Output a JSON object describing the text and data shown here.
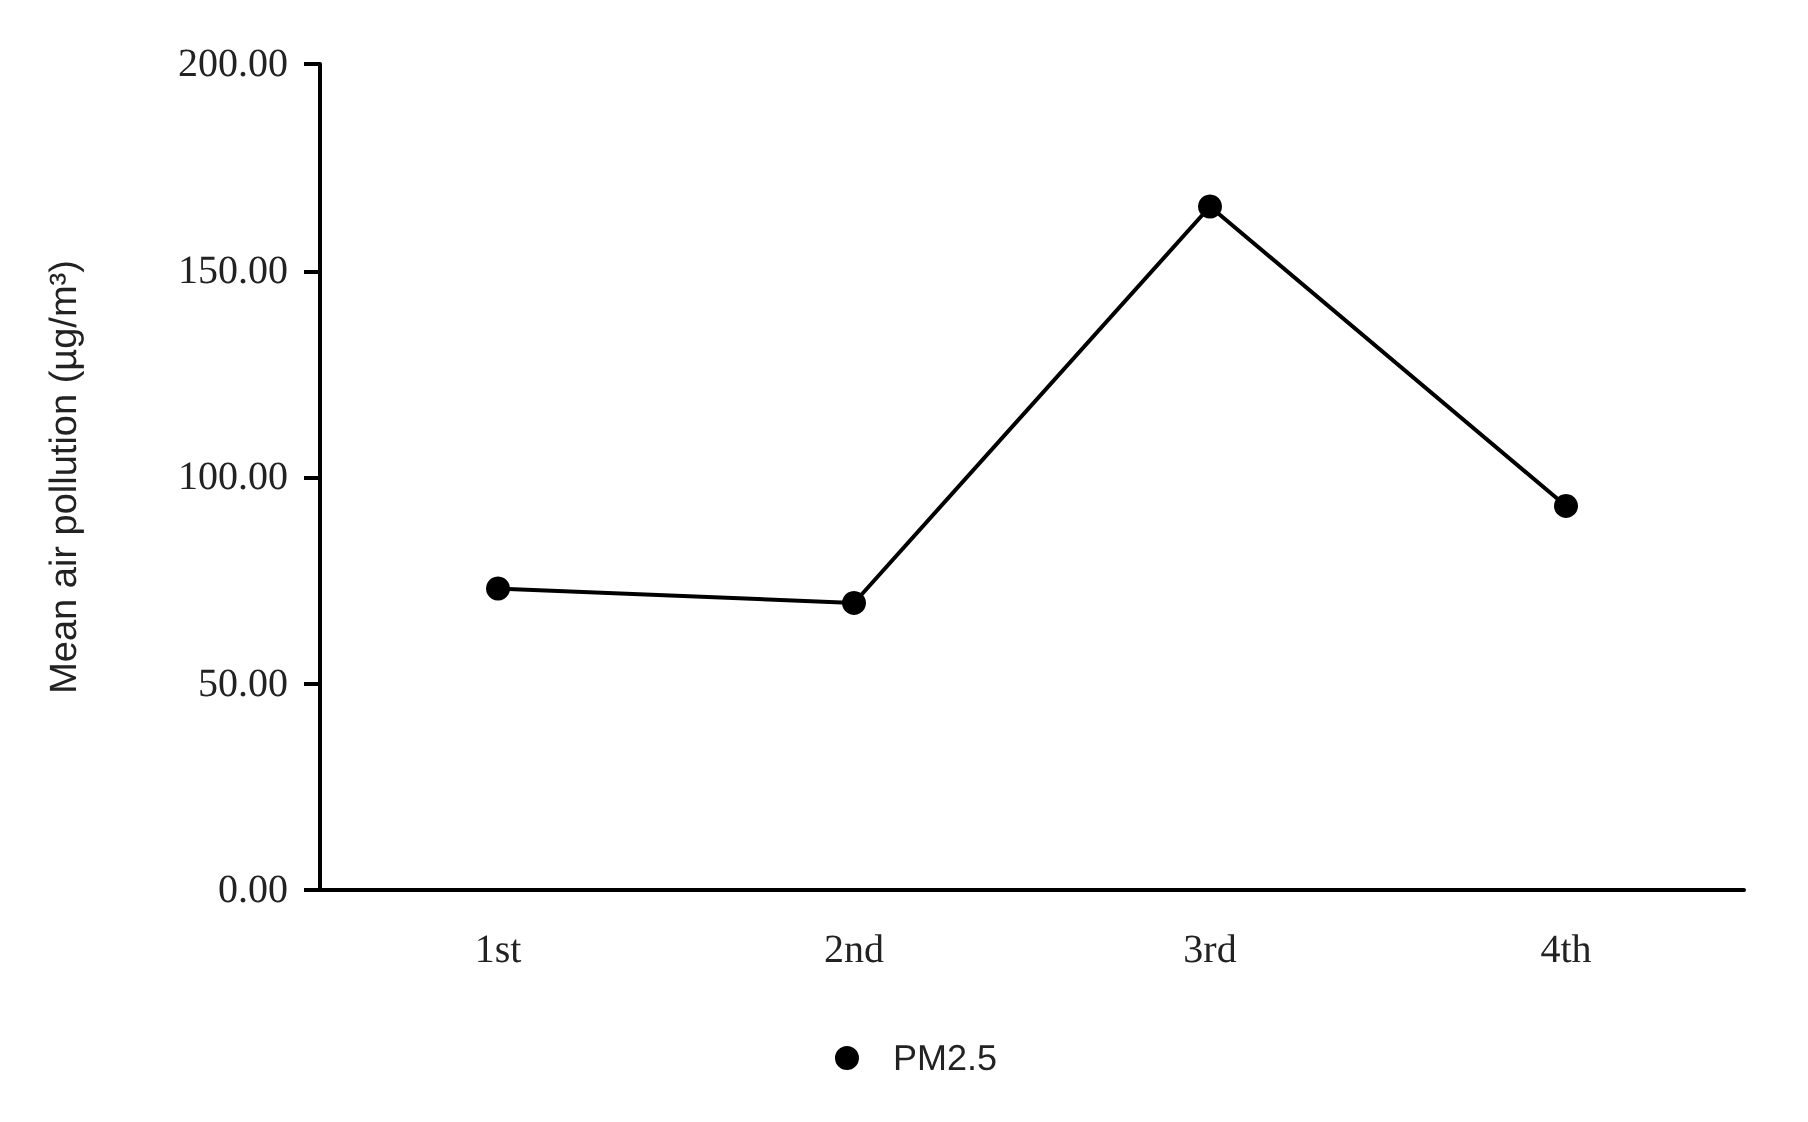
{
  "chart_data": {
    "type": "line",
    "ylabel": "Mean air pollution (µg/m³)",
    "categories": [
      "1st",
      "2nd",
      "3rd",
      "4th"
    ],
    "series": [
      {
        "name": "PM2.5",
        "color": "#000000",
        "values": [
          73,
          69.5,
          165.5,
          93
        ]
      }
    ],
    "ylim": [
      0,
      200
    ],
    "yticks": [
      {
        "value": 0,
        "label": "0.00"
      },
      {
        "value": 50,
        "label": "50.00"
      },
      {
        "value": 100,
        "label": "100.00"
      },
      {
        "value": 150,
        "label": "150.00"
      },
      {
        "value": 200,
        "label": "200.00"
      }
    ],
    "grid": false,
    "legend": "bottom",
    "marker": "circle",
    "line_style": "solid"
  }
}
